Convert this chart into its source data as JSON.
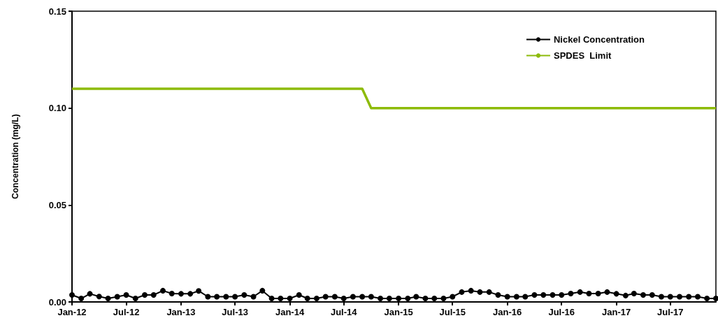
{
  "chart_data": {
    "type": "line",
    "ylabel": "Concentration (mg/L)",
    "xlim": [
      "2012-01",
      "2017-12"
    ],
    "xticks": [
      {
        "value": "2012-01",
        "label": "Jan-12"
      },
      {
        "value": "2012-07",
        "label": "Jul-12"
      },
      {
        "value": "2013-01",
        "label": "Jan-13"
      },
      {
        "value": "2013-07",
        "label": "Jul-13"
      },
      {
        "value": "2014-01",
        "label": "Jan-14"
      },
      {
        "value": "2014-07",
        "label": "Jul-14"
      },
      {
        "value": "2015-01",
        "label": "Jan-15"
      },
      {
        "value": "2015-07",
        "label": "Jul-15"
      },
      {
        "value": "2016-01",
        "label": "Jan-16"
      },
      {
        "value": "2016-07",
        "label": "Jul-16"
      },
      {
        "value": "2017-01",
        "label": "Jan-17"
      },
      {
        "value": "2017-07",
        "label": "Jul-17"
      }
    ],
    "ylim": [
      0,
      0.15
    ],
    "yticks": [
      {
        "value": 0,
        "label": "0.00"
      },
      {
        "value": 0.05,
        "label": "0.05"
      },
      {
        "value": 0.1,
        "label": "0.10"
      },
      {
        "value": 0.15,
        "label": "0.15"
      }
    ],
    "grid": false,
    "legend": "top right",
    "series": [
      {
        "name": "Nickel Concentration",
        "color": "#000000",
        "marker": "circle",
        "x": [
          "2012-01",
          "2012-02",
          "2012-03",
          "2012-04",
          "2012-05",
          "2012-06",
          "2012-07",
          "2012-08",
          "2012-09",
          "2012-10",
          "2012-11",
          "2012-12",
          "2013-01",
          "2013-02",
          "2013-03",
          "2013-04",
          "2013-05",
          "2013-06",
          "2013-07",
          "2013-08",
          "2013-09",
          "2013-10",
          "2013-11",
          "2013-12",
          "2014-01",
          "2014-02",
          "2014-03",
          "2014-04",
          "2014-05",
          "2014-06",
          "2014-07",
          "2014-08",
          "2014-09",
          "2014-10",
          "2014-11",
          "2014-12",
          "2015-01",
          "2015-02",
          "2015-03",
          "2015-04",
          "2015-05",
          "2015-06",
          "2015-07",
          "2015-08",
          "2015-09",
          "2015-10",
          "2015-11",
          "2015-12",
          "2016-01",
          "2016-02",
          "2016-03",
          "2016-04",
          "2016-05",
          "2016-06",
          "2016-07",
          "2016-08",
          "2016-09",
          "2016-10",
          "2016-11",
          "2016-12",
          "2017-01",
          "2017-02",
          "2017-03",
          "2017-04",
          "2017-05",
          "2017-06",
          "2017-07",
          "2017-08",
          "2017-09",
          "2017-10",
          "2017-11",
          "2017-12"
        ],
        "values": [
          0.0036,
          0.0018,
          0.0042,
          0.0028,
          0.0018,
          0.0027,
          0.0036,
          0.0018,
          0.0036,
          0.0036,
          0.0058,
          0.0043,
          0.0042,
          0.0042,
          0.0057,
          0.0027,
          0.0027,
          0.0027,
          0.0027,
          0.0036,
          0.0027,
          0.0058,
          0.0018,
          0.0018,
          0.0018,
          0.0036,
          0.0018,
          0.0018,
          0.0027,
          0.0027,
          0.0018,
          0.0027,
          0.0027,
          0.0027,
          0.0018,
          0.0018,
          0.0018,
          0.0018,
          0.0027,
          0.0018,
          0.0018,
          0.0018,
          0.0027,
          0.0051,
          0.0058,
          0.0051,
          0.0051,
          0.0036,
          0.0027,
          0.0027,
          0.0027,
          0.0036,
          0.0036,
          0.0036,
          0.0036,
          0.0043,
          0.0051,
          0.0043,
          0.0043,
          0.0051,
          0.0042,
          0.0033,
          0.0043,
          0.0036,
          0.0036,
          0.0027,
          0.0027,
          0.0027,
          0.0027,
          0.0027,
          0.0018,
          0.0018
        ]
      },
      {
        "name": "SPDES  Limit",
        "color": "#8dbb0a",
        "marker": "none",
        "x": [
          "2012-01",
          "2014-09",
          "2014-10",
          "2017-12"
        ],
        "values": [
          0.11,
          0.11,
          0.1,
          0.1
        ]
      }
    ]
  }
}
